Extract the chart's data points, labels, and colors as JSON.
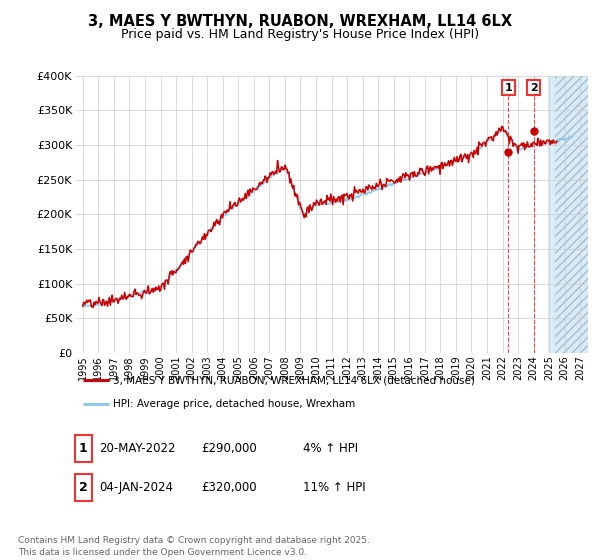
{
  "title": "3, MAES Y BWTHYN, RUABON, WREXHAM, LL14 6LX",
  "subtitle": "Price paid vs. HM Land Registry's House Price Index (HPI)",
  "ytick_labels": [
    "£0",
    "£50K",
    "£100K",
    "£150K",
    "£200K",
    "£250K",
    "£300K",
    "£350K",
    "£400K"
  ],
  "ytick_values": [
    0,
    50000,
    100000,
    150000,
    200000,
    250000,
    300000,
    350000,
    400000
  ],
  "ylim": [
    0,
    400000
  ],
  "xlim": [
    1994.5,
    2027.5
  ],
  "xtick_years": [
    1995,
    1996,
    1997,
    1998,
    1999,
    2000,
    2001,
    2002,
    2003,
    2004,
    2005,
    2006,
    2007,
    2008,
    2009,
    2010,
    2011,
    2012,
    2013,
    2014,
    2015,
    2016,
    2017,
    2018,
    2019,
    2020,
    2021,
    2022,
    2023,
    2024,
    2025,
    2026,
    2027
  ],
  "hpi_color": "#90C8E8",
  "price_color": "#CC0000",
  "grid_color": "#CCCCCC",
  "bg_color": "#FFFFFF",
  "future_shade_color": "#D8ECF8",
  "future_hatch_color": "#AABBCC",
  "vline_color": "#EE3333",
  "legend_label_price": "3, MAES Y BWTHYN, RUABON, WREXHAM, LL14 6LX (detached house)",
  "legend_label_hpi": "HPI: Average price, detached house, Wrexham",
  "ann1_x": 2022.38,
  "ann1_y": 290000,
  "ann1_date": "20-MAY-2022",
  "ann1_price": "£290,000",
  "ann1_hpi": "4% ↑ HPI",
  "ann2_x": 2024.01,
  "ann2_y": 320000,
  "ann2_date": "04-JAN-2024",
  "ann2_price": "£320,000",
  "ann2_hpi": "11% ↑ HPI",
  "footer_line1": "Contains HM Land Registry data © Crown copyright and database right 2025.",
  "footer_line2": "This data is licensed under the Open Government Licence v3.0."
}
